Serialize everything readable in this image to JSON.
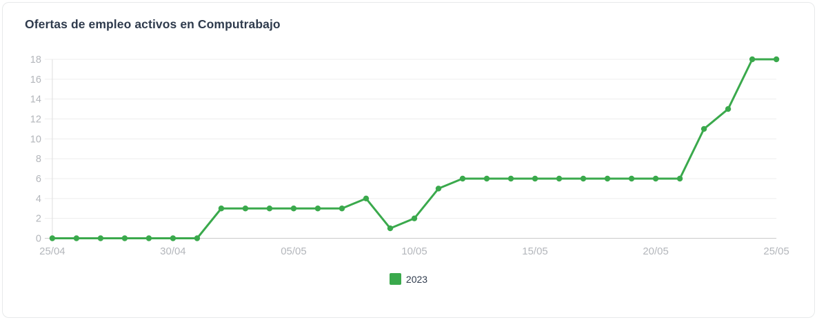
{
  "card": {
    "title": "Ofertas de empleo activos en Computrabajo"
  },
  "legend": {
    "items": [
      {
        "label": "2023",
        "color": "#3aa94c"
      }
    ]
  },
  "chart_data": {
    "type": "line",
    "title": "Ofertas de empleo activos en Computrabajo",
    "x": [
      "25/04",
      "26/04",
      "27/04",
      "28/04",
      "29/04",
      "30/04",
      "01/05",
      "02/05",
      "03/05",
      "04/05",
      "05/05",
      "06/05",
      "07/05",
      "08/05",
      "09/05",
      "10/05",
      "11/05",
      "12/05",
      "13/05",
      "14/05",
      "15/05",
      "16/05",
      "17/05",
      "18/05",
      "19/05",
      "20/05",
      "21/05",
      "22/05",
      "23/05",
      "24/05",
      "25/05"
    ],
    "series": [
      {
        "name": "2023",
        "color": "#3aa94c",
        "values": [
          0,
          0,
          0,
          0,
          0,
          0,
          0,
          3,
          3,
          3,
          3,
          3,
          3,
          4,
          1,
          2,
          5,
          6,
          6,
          6,
          6,
          6,
          6,
          6,
          6,
          6,
          6,
          11,
          13,
          18,
          18
        ]
      }
    ],
    "x_tick_labels": [
      "25/04",
      "30/04",
      "05/05",
      "10/05",
      "15/05",
      "20/05",
      "25/05"
    ],
    "y_ticks": [
      0,
      2,
      4,
      6,
      8,
      10,
      12,
      14,
      16,
      18
    ],
    "ylim": [
      0,
      18
    ],
    "grid": "horizontal",
    "legend_position": "bottom",
    "colors": {
      "grid_line": "#ededed",
      "x_axis_line": "#c9c9c9",
      "y_axis_line": "#dedede",
      "tick_label": "#b3b6bb"
    }
  }
}
